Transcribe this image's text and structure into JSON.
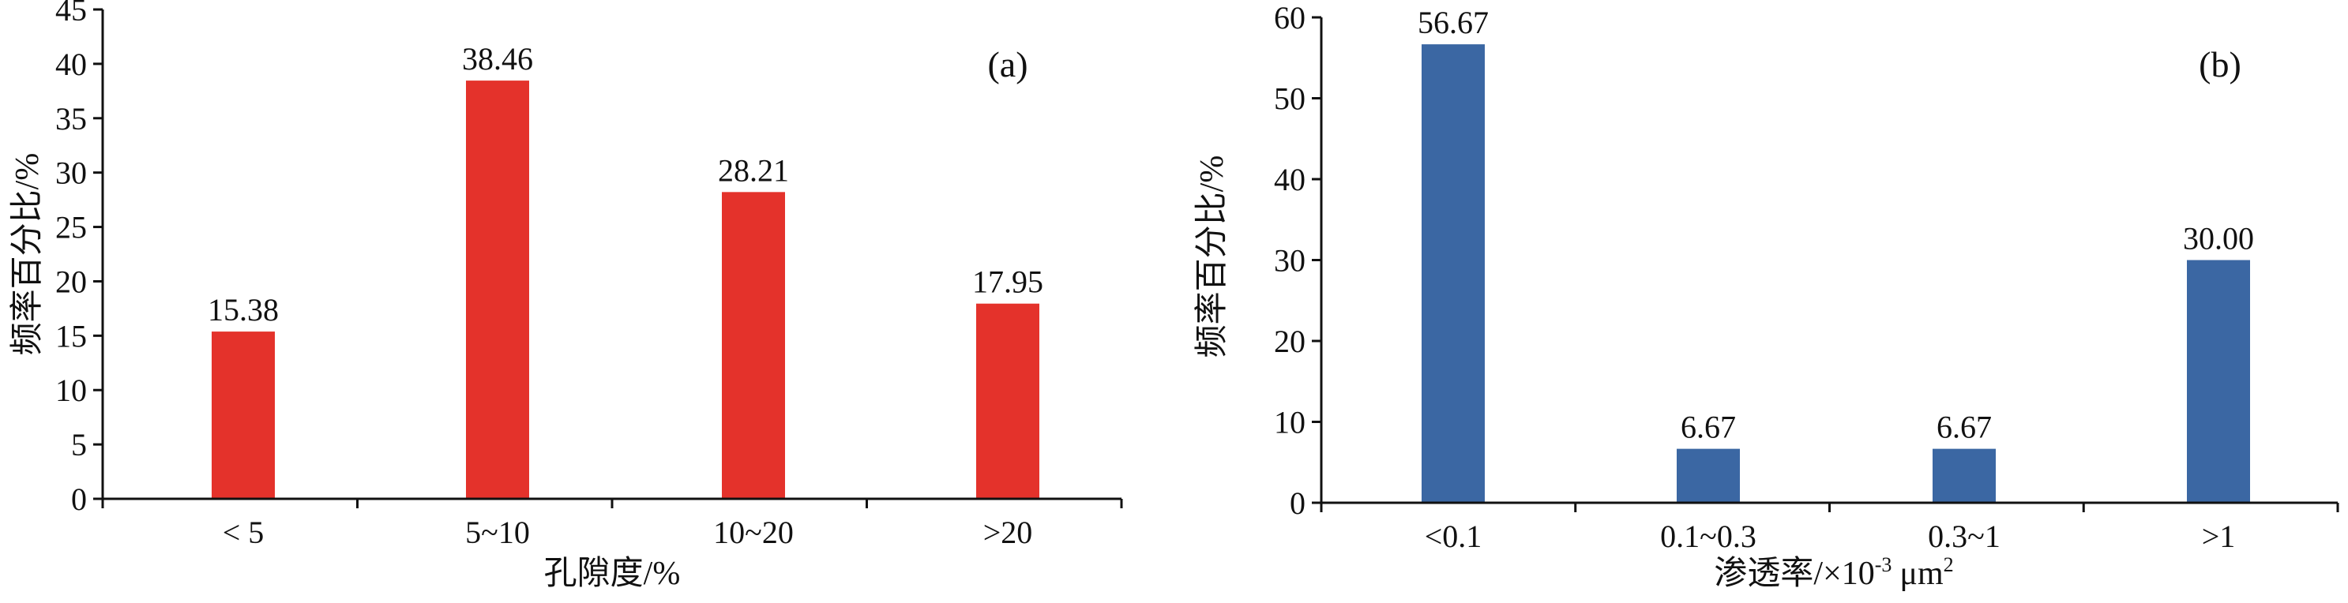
{
  "colors": {
    "panel_a_bar": "#e4322b",
    "panel_b_bar": "#3b67a3",
    "axis": "#111111"
  },
  "chart_data": [
    {
      "type": "bar",
      "panel_label": "(a)",
      "categories": [
        "< 5",
        "5~10",
        "10~20",
        ">20"
      ],
      "values": [
        15.38,
        38.46,
        28.21,
        17.95
      ],
      "value_labels": [
        "15.38",
        "38.46",
        "28.21",
        "17.95"
      ],
      "yticks": [
        "0",
        "5",
        "10",
        "15",
        "20",
        "25",
        "30",
        "35",
        "40",
        "45"
      ],
      "ylim": [
        0,
        45
      ],
      "ylabel": "频率百分比/%",
      "xlabel": "孔隙度/%",
      "grid": false,
      "legend": "none"
    },
    {
      "type": "bar",
      "panel_label": "(b)",
      "categories": [
        "<0.1",
        "0.1~0.3",
        "0.3~1",
        ">1"
      ],
      "values": [
        56.67,
        6.67,
        6.67,
        30.0
      ],
      "value_labels": [
        "56.67",
        "6.67",
        "6.67",
        "30.00"
      ],
      "yticks": [
        "0",
        "10",
        "20",
        "30",
        "40",
        "50",
        "60"
      ],
      "ylim": [
        0,
        60
      ],
      "ylabel": "频率百分比/%",
      "xlabel": {
        "prefix": "渗透率/",
        "times": "×",
        "base": "10",
        "exponent": "-3",
        "unit": "μm",
        "unit_exponent": "2"
      },
      "grid": false,
      "legend": "none"
    }
  ]
}
